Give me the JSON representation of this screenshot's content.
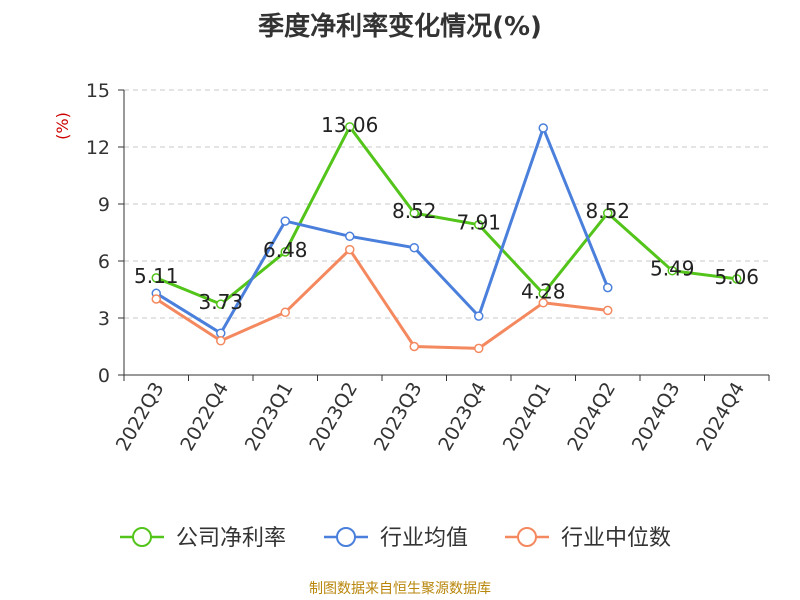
{
  "chart_data": {
    "type": "line",
    "title": "季度净利率变化情况(%)",
    "ylabel": "(%)",
    "ylim": [
      0,
      15
    ],
    "yticks": [
      0,
      3,
      6,
      9,
      12,
      15
    ],
    "grid": true,
    "legend_position": "bottom",
    "categories": [
      "2022Q3",
      "2022Q4",
      "2023Q1",
      "2023Q2",
      "2023Q3",
      "2023Q4",
      "2024Q1",
      "2024Q2",
      "2024Q3",
      "2024Q4"
    ],
    "series": [
      {
        "name": "公司净利率",
        "color": "#52c41a",
        "values": [
          5.11,
          3.73,
          6.48,
          13.06,
          8.52,
          7.91,
          4.28,
          8.52,
          5.49,
          5.06
        ],
        "labels": [
          "5.11",
          "3.73",
          "6.48",
          "13.06",
          "8.52",
          "7.91",
          "4.28",
          "8.52",
          "5.49",
          "5.06"
        ]
      },
      {
        "name": "行业均值",
        "color": "#4a7fdb",
        "values": [
          4.3,
          2.2,
          8.1,
          7.3,
          6.7,
          3.1,
          13.0,
          4.6,
          null,
          null
        ]
      },
      {
        "name": "行业中位数",
        "color": "#f4895f",
        "values": [
          4.0,
          1.8,
          3.3,
          6.6,
          1.5,
          1.4,
          3.8,
          3.4,
          null,
          null
        ]
      }
    ]
  },
  "footer": {
    "source": "制图数据来自恒生聚源数据库"
  }
}
